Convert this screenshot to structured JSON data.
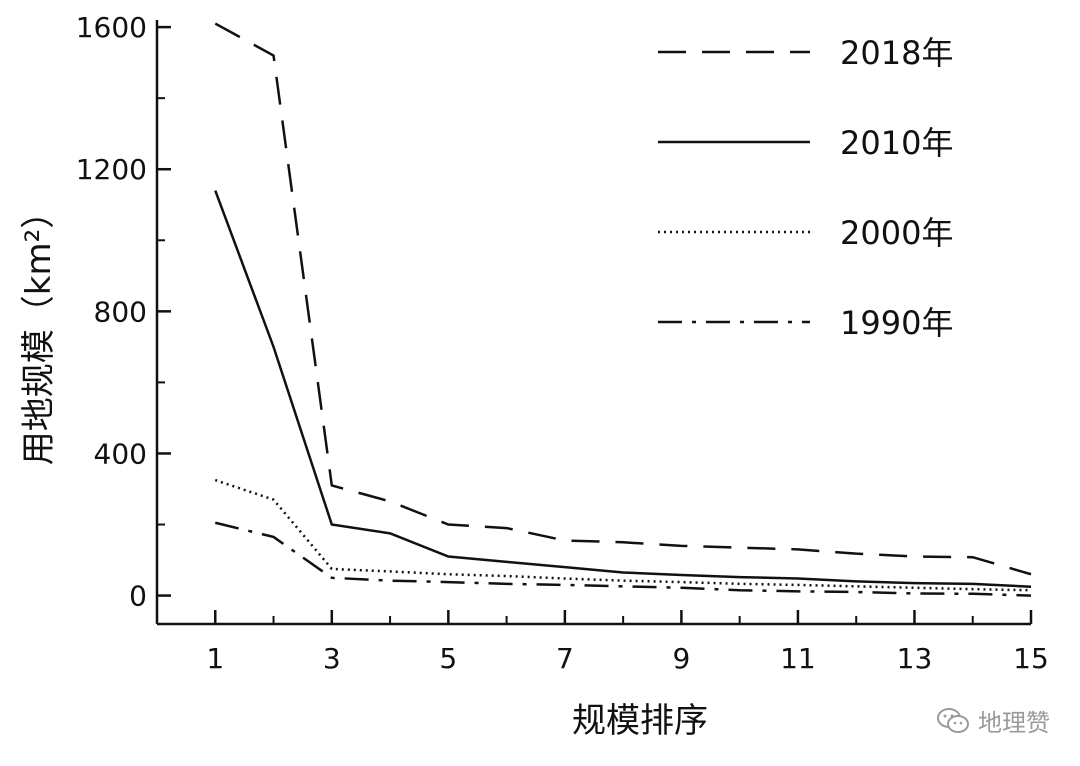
{
  "chart_data": {
    "type": "line",
    "title": "",
    "xlabel": "规模排序",
    "ylabel": "用地规模（km²）",
    "x": [
      1,
      2,
      3,
      4,
      5,
      6,
      7,
      8,
      9,
      10,
      11,
      12,
      13,
      14,
      15
    ],
    "xticks": [
      1,
      3,
      5,
      7,
      9,
      11,
      13,
      15
    ],
    "yticks": [
      0,
      400,
      800,
      1200,
      1600
    ],
    "xlim": [
      0,
      15
    ],
    "ylim": [
      -80,
      1620
    ],
    "grid": false,
    "legend_position": "top-right",
    "series": [
      {
        "name": "2018年",
        "style": "dashed",
        "values": [
          1610,
          1520,
          310,
          265,
          200,
          190,
          155,
          150,
          140,
          135,
          130,
          118,
          110,
          108,
          60
        ]
      },
      {
        "name": "2010年",
        "style": "solid",
        "values": [
          1140,
          700,
          200,
          175,
          110,
          95,
          80,
          65,
          58,
          52,
          48,
          40,
          35,
          33,
          25
        ]
      },
      {
        "name": "2000年",
        "style": "dotted",
        "values": [
          325,
          270,
          75,
          68,
          60,
          55,
          48,
          42,
          38,
          33,
          30,
          26,
          22,
          18,
          15
        ]
      },
      {
        "name": "1990年",
        "style": "dashdot",
        "values": [
          205,
          165,
          50,
          42,
          38,
          33,
          30,
          26,
          22,
          15,
          12,
          10,
          6,
          5,
          0
        ]
      }
    ]
  },
  "watermark": {
    "text": "地理赞",
    "icon": "wechat-icon"
  },
  "colors": {
    "line": "#111111",
    "watermark": "#9a9a9a"
  }
}
